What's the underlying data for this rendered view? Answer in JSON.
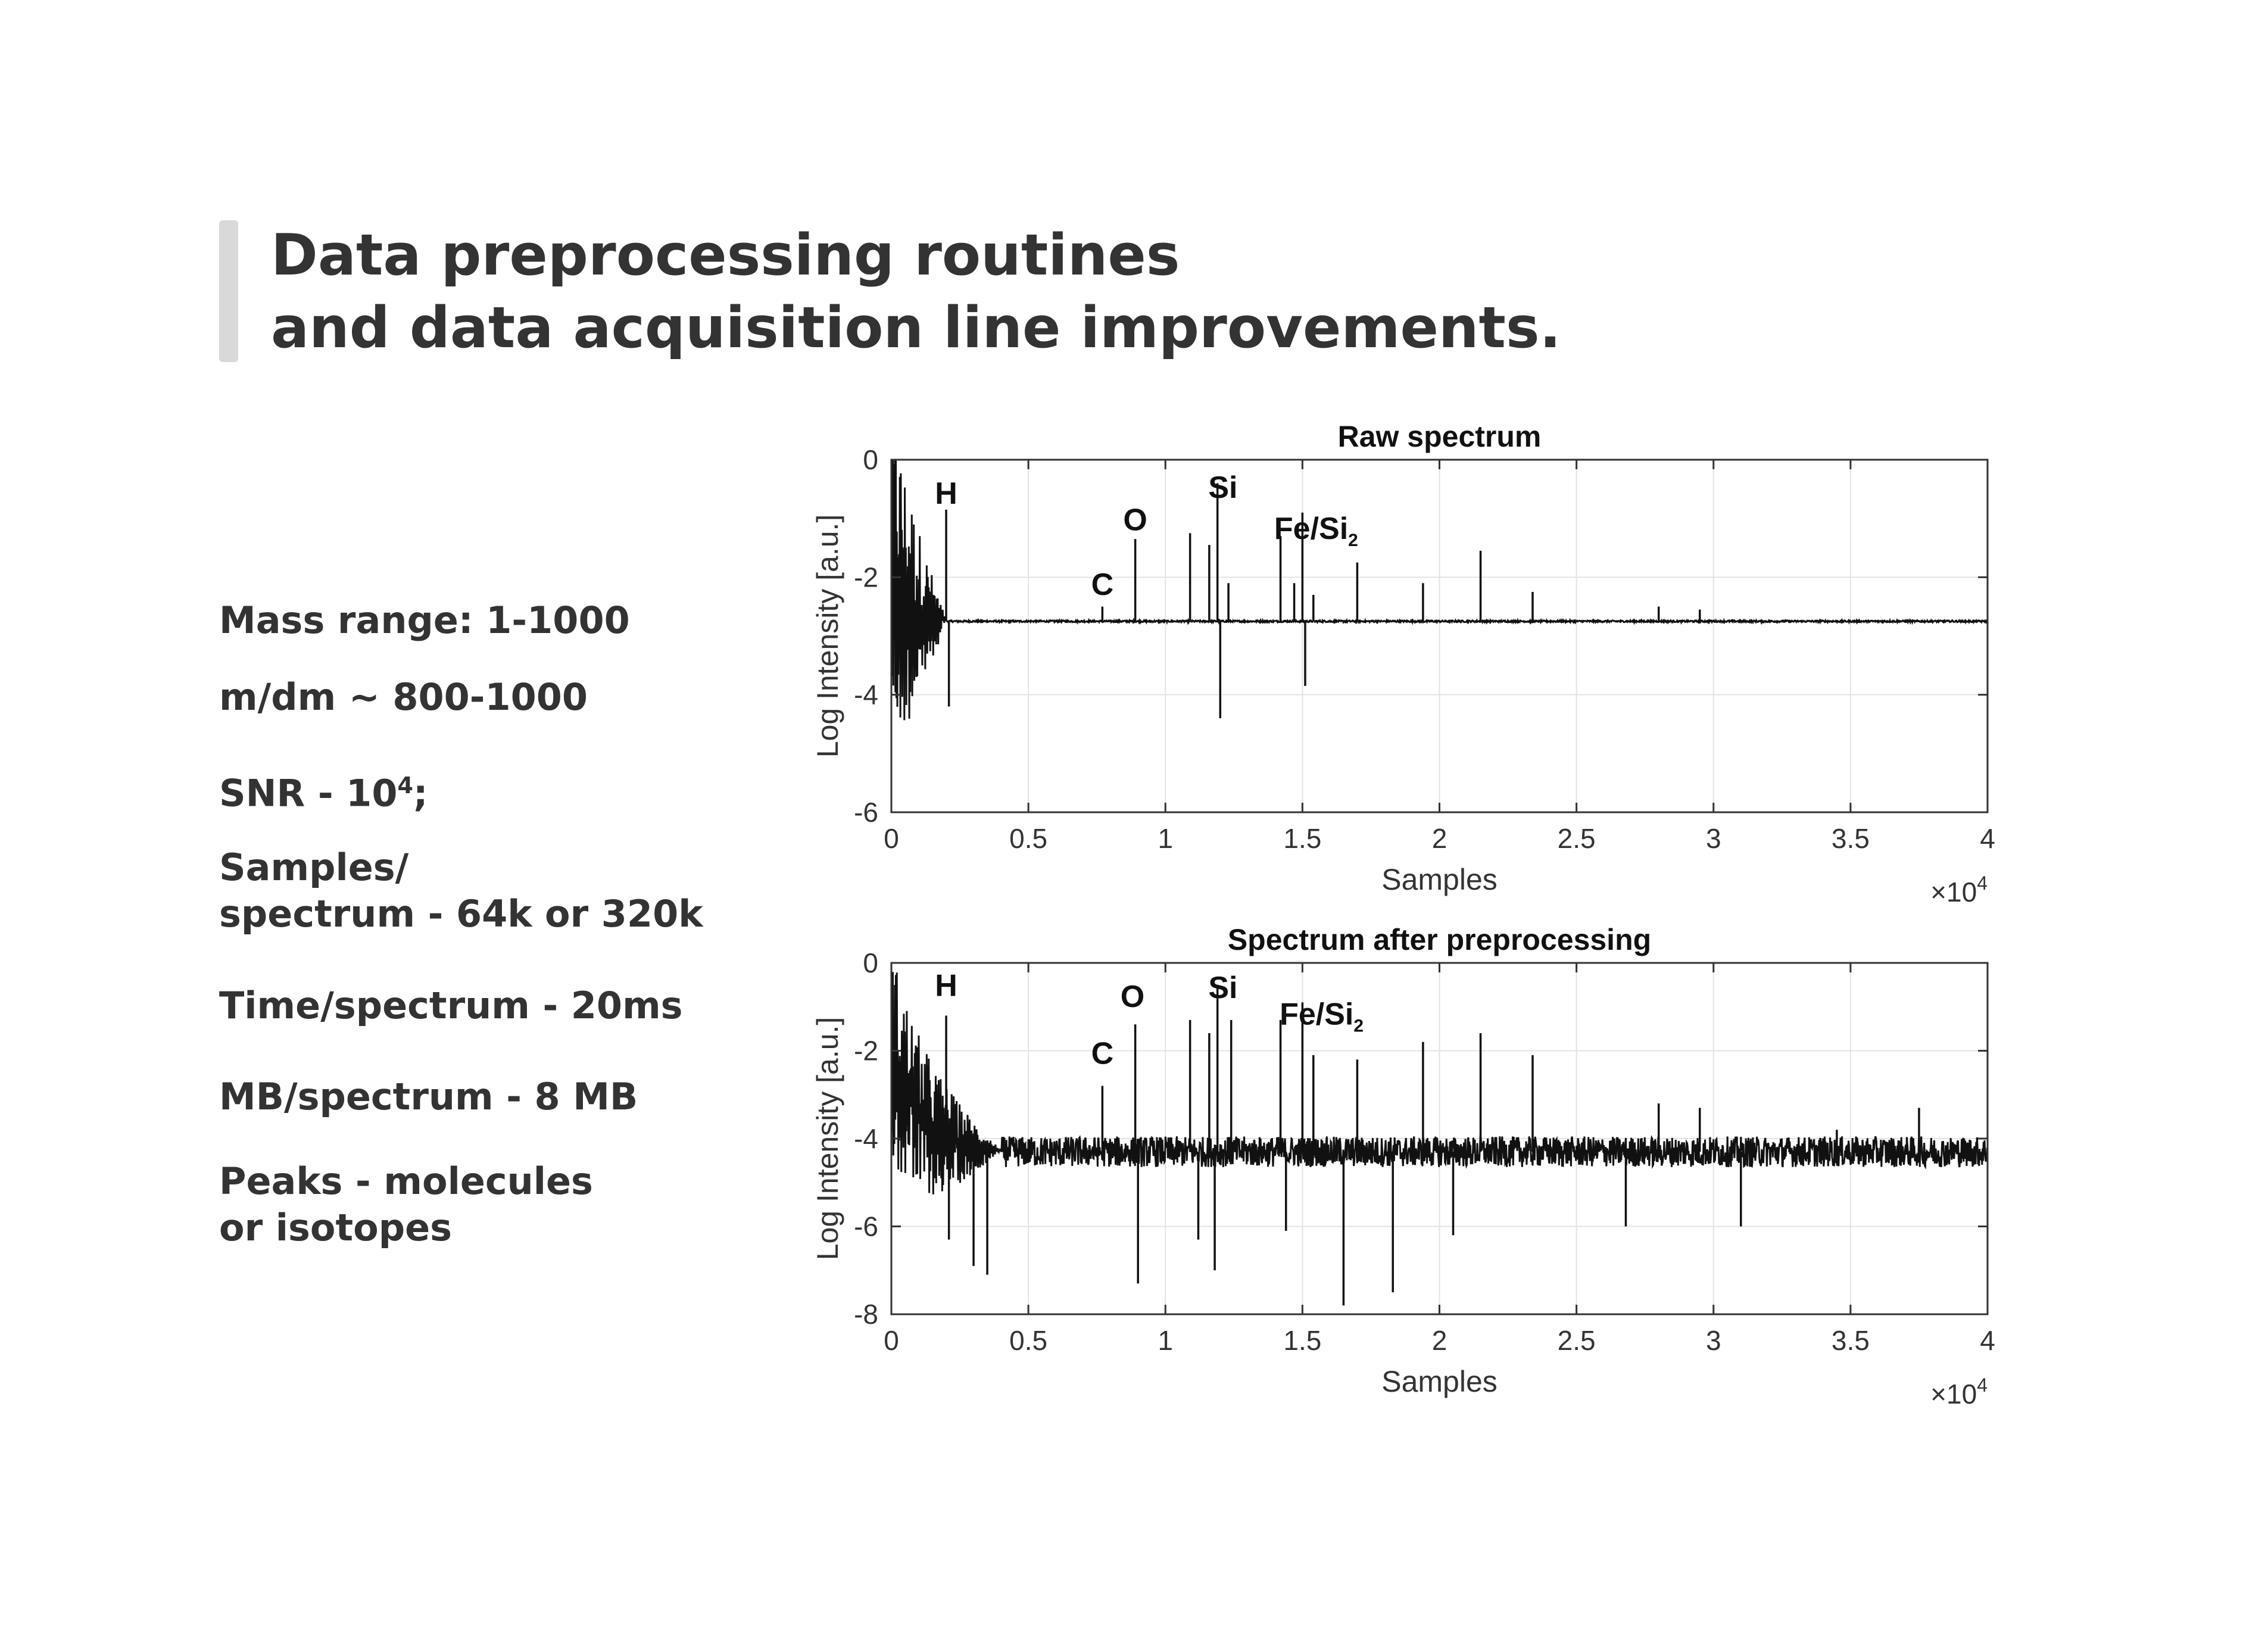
{
  "title": {
    "line1": "Data preprocessing routines",
    "line2": "and data acquisition line improvements."
  },
  "specs": {
    "mass_range": "Mass range: 1-1000",
    "resolution": "m/dm ~ 800-1000",
    "snr_prefix": "SNR - 10",
    "snr_exponent": "4",
    "snr_suffix": ";",
    "samples_line1": "Samples/",
    "samples_line2": "spectrum - 64k or 320k",
    "time": "Time/spectrum - 20ms",
    "size": "MB/spectrum - 8 MB",
    "peaks_line1": "Peaks - molecules",
    "peaks_line2": "or isotopes"
  },
  "chart_data": [
    {
      "type": "line",
      "title": "Raw spectrum",
      "xlabel": "Samples",
      "ylabel": "Log Intensity [a.u.]",
      "x_multiplier": "×10",
      "x_multiplier_exponent": "4",
      "xlim": [
        0,
        40000
      ],
      "ylim": [
        -6,
        0
      ],
      "xticks": [
        0,
        0.5,
        1,
        1.5,
        2,
        2.5,
        3,
        3.5,
        4
      ],
      "yticks": [
        0,
        -2,
        -4,
        -6
      ],
      "grid": true,
      "baseline": -2.75,
      "noise": 0.015,
      "startup": {
        "x": [
          0,
          2000
        ],
        "y_start": -1.8,
        "y_min": -6.0
      },
      "annotations": [
        {
          "label": "H",
          "x": 2000,
          "y": -0.75
        },
        {
          "label": "C",
          "x": 7700,
          "y": -2.3
        },
        {
          "label": "O",
          "x": 8900,
          "y": -1.2
        },
        {
          "label": "Si",
          "x": 12100,
          "y": -0.65
        },
        {
          "label": "Fe/Si",
          "sub": "2",
          "x": 15500,
          "y": -1.35
        }
      ],
      "peaks": [
        {
          "x": 2000,
          "y": -0.85
        },
        {
          "x": 2100,
          "y": -4.2
        },
        {
          "x": 7700,
          "y": -2.5
        },
        {
          "x": 8900,
          "y": -1.35
        },
        {
          "x": 10900,
          "y": -1.25
        },
        {
          "x": 11600,
          "y": -1.45
        },
        {
          "x": 11900,
          "y": -0.4
        },
        {
          "x": 12000,
          "y": -4.4
        },
        {
          "x": 12300,
          "y": -2.1
        },
        {
          "x": 14200,
          "y": -1.3
        },
        {
          "x": 14700,
          "y": -2.1
        },
        {
          "x": 15000,
          "y": -0.9
        },
        {
          "x": 15100,
          "y": -3.85
        },
        {
          "x": 15400,
          "y": -2.3
        },
        {
          "x": 17000,
          "y": -1.75
        },
        {
          "x": 19400,
          "y": -2.1
        },
        {
          "x": 21500,
          "y": -1.55
        },
        {
          "x": 23400,
          "y": -2.25
        },
        {
          "x": 28000,
          "y": -2.5
        },
        {
          "x": 29500,
          "y": -2.55
        }
      ]
    },
    {
      "type": "line",
      "title": "Spectrum after preprocessing",
      "xlabel": "Samples",
      "ylabel": "Log Intensity [a.u.]",
      "x_multiplier": "×10",
      "x_multiplier_exponent": "4",
      "xlim": [
        0,
        40000
      ],
      "ylim": [
        -8,
        0
      ],
      "xticks": [
        0,
        0.5,
        1,
        1.5,
        2,
        2.5,
        3,
        3.5,
        4
      ],
      "yticks": [
        0,
        -2,
        -4,
        -6,
        -8
      ],
      "grid": true,
      "baseline": -4.3,
      "noise": 0.35,
      "startup": {
        "x": [
          0,
          4000
        ],
        "y_start": -2.0,
        "y_min": -7.0
      },
      "annotations": [
        {
          "label": "H",
          "x": 2000,
          "y": -0.75
        },
        {
          "label": "C",
          "x": 7700,
          "y": -2.3
        },
        {
          "label": "O",
          "x": 8800,
          "y": -1.0
        },
        {
          "label": "Si",
          "x": 12100,
          "y": -0.8
        },
        {
          "label": "Fe/Si",
          "sub": "2",
          "x": 15700,
          "y": -1.4
        }
      ],
      "peaks": [
        {
          "x": 2000,
          "y": -1.2
        },
        {
          "x": 2100,
          "y": -6.3
        },
        {
          "x": 3000,
          "y": -6.9
        },
        {
          "x": 3500,
          "y": -7.1
        },
        {
          "x": 7700,
          "y": -2.8
        },
        {
          "x": 8900,
          "y": -1.4
        },
        {
          "x": 9000,
          "y": -7.3
        },
        {
          "x": 10900,
          "y": -1.3
        },
        {
          "x": 11200,
          "y": -6.3
        },
        {
          "x": 11600,
          "y": -1.6
        },
        {
          "x": 11800,
          "y": -7.0
        },
        {
          "x": 11900,
          "y": -0.5
        },
        {
          "x": 12400,
          "y": -1.3
        },
        {
          "x": 14200,
          "y": -1.3
        },
        {
          "x": 14400,
          "y": -6.1
        },
        {
          "x": 15000,
          "y": -0.9
        },
        {
          "x": 15400,
          "y": -2.1
        },
        {
          "x": 16500,
          "y": -7.8
        },
        {
          "x": 17000,
          "y": -2.2
        },
        {
          "x": 18300,
          "y": -7.5
        },
        {
          "x": 19400,
          "y": -1.8
        },
        {
          "x": 20500,
          "y": -6.2
        },
        {
          "x": 21500,
          "y": -1.6
        },
        {
          "x": 23400,
          "y": -2.1
        },
        {
          "x": 26800,
          "y": -6.0
        },
        {
          "x": 28000,
          "y": -3.2
        },
        {
          "x": 29500,
          "y": -3.3
        },
        {
          "x": 31000,
          "y": -6.0
        },
        {
          "x": 34500,
          "y": -3.8
        },
        {
          "x": 37500,
          "y": -3.3
        }
      ]
    }
  ]
}
